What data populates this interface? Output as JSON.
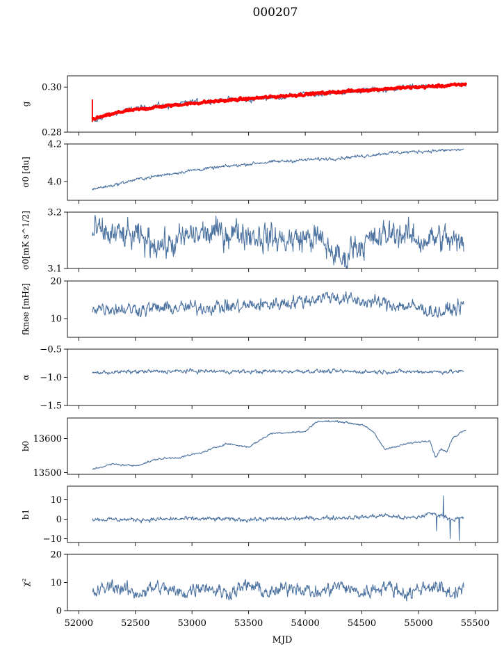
{
  "figure": {
    "title": "000207",
    "xlabel": "MJD",
    "xlim": [
      51900,
      55700
    ],
    "xticks": [
      52000,
      52500,
      53000,
      53500,
      54000,
      54500,
      55000,
      55500
    ],
    "line_color": "#4c72a0",
    "fit_color": "#ff0000"
  },
  "chart_data": [
    {
      "type": "line",
      "ylabel": "g",
      "ylim": [
        0.28,
        0.305
      ],
      "yticks": [
        0.28,
        0.3
      ],
      "ytick_labels": [
        "0.28",
        "0.30"
      ],
      "x_range": [
        52120,
        55420
      ],
      "series": [
        {
          "x": [
            52120,
            52150,
            52200,
            52300,
            52400,
            52500,
            52600,
            52700,
            52800,
            52900,
            53000,
            53100,
            53200,
            53300,
            53400,
            53500,
            53600,
            53700,
            53800,
            53900,
            54000,
            54100,
            54200,
            54300,
            54400,
            54500,
            54600,
            54700,
            54800,
            54900,
            55000,
            55100,
            55200,
            55300,
            55400
          ],
          "y": [
            0.2855,
            0.2845,
            0.2865,
            0.288,
            0.2895,
            0.2905,
            0.291,
            0.292,
            0.2915,
            0.2925,
            0.2935,
            0.2935,
            0.294,
            0.2945,
            0.2945,
            0.294,
            0.295,
            0.2955,
            0.2955,
            0.2965,
            0.297,
            0.2965,
            0.2975,
            0.2975,
            0.298,
            0.2985,
            0.299,
            0.2985,
            0.2995,
            0.3,
            0.3,
            0.3005,
            0.3,
            0.301,
            0.3005
          ],
          "noise": 0.0008
        },
        {
          "style": "fit",
          "x": [
            52120,
            52400,
            52800,
            53200,
            53600,
            54000,
            54400,
            54800,
            55200,
            55420
          ],
          "y": [
            0.2858,
            0.2893,
            0.2918,
            0.2937,
            0.2952,
            0.2968,
            0.2982,
            0.2995,
            0.3005,
            0.3012
          ],
          "noise": 0.0004
        }
      ]
    },
    {
      "type": "line",
      "ylabel": "σ0 [du]",
      "ylim": [
        3.9,
        4.2
      ],
      "yticks": [
        4.0,
        4.2
      ],
      "ytick_labels": [
        "4.0",
        "4.2"
      ],
      "x_range": [
        52120,
        55400
      ],
      "series": [
        {
          "x": [
            52120,
            52300,
            52500,
            52800,
            53000,
            53300,
            53600,
            54000,
            54300,
            54500,
            54700,
            55000,
            55200,
            55400
          ],
          "y": [
            3.96,
            3.98,
            4.01,
            4.04,
            4.06,
            4.08,
            4.1,
            4.115,
            4.125,
            4.135,
            4.15,
            4.16,
            4.165,
            4.17
          ],
          "noise": 0.006
        }
      ]
    },
    {
      "type": "line",
      "ylabel": "σ0[mK s^1/2]",
      "ylim": [
        3.1,
        3.2
      ],
      "yticks": [
        3.1,
        3.2
      ],
      "ytick_labels": [
        "3.1",
        "3.2"
      ],
      "x_range": [
        52120,
        55400
      ],
      "series": [
        {
          "x": [
            52120,
            52500,
            52800,
            53000,
            53400,
            53800,
            54100,
            54350,
            54400,
            54600,
            54800,
            55000,
            55200,
            55400
          ],
          "y": [
            3.165,
            3.155,
            3.14,
            3.16,
            3.165,
            3.15,
            3.155,
            3.11,
            3.14,
            3.15,
            3.165,
            3.15,
            3.155,
            3.14
          ],
          "noise": 0.018
        }
      ]
    },
    {
      "type": "line",
      "ylabel": "fknee [mHz]",
      "ylim": [
        5,
        20
      ],
      "yticks": [
        10,
        20
      ],
      "ytick_labels": [
        "10",
        "20"
      ],
      "x_range": [
        52120,
        55400
      ],
      "series": [
        {
          "x": [
            52120,
            52500,
            52800,
            53100,
            53400,
            53700,
            54000,
            54200,
            54400,
            54700,
            55000,
            55200,
            55400
          ],
          "y": [
            13,
            12.5,
            12.8,
            13,
            13.2,
            13.8,
            14.8,
            16,
            15,
            14,
            12.8,
            11.5,
            13.5
          ],
          "noise": 1.3
        }
      ]
    },
    {
      "type": "line",
      "ylabel": "α",
      "ylim": [
        -1.5,
        -0.5
      ],
      "yticks": [
        -1.5,
        -1.0,
        -0.5
      ],
      "ytick_labels": [
        "−1.5",
        "−1.0",
        "−0.5"
      ],
      "x_range": [
        52120,
        55400
      ],
      "series": [
        {
          "x": [
            52120,
            52500,
            53000,
            53500,
            54000,
            54500,
            55000,
            55400
          ],
          "y": [
            -0.92,
            -0.9,
            -0.89,
            -0.9,
            -0.89,
            -0.9,
            -0.9,
            -0.9
          ],
          "noise": 0.025
        }
      ]
    },
    {
      "type": "line",
      "ylabel": "b0",
      "ylim": [
        13495,
        13660
      ],
      "yticks": [
        13500,
        13600
      ],
      "ytick_labels": [
        "13500",
        "13600"
      ],
      "x_range": [
        52120,
        55420
      ],
      "series": [
        {
          "x": [
            52120,
            52300,
            52500,
            52700,
            52900,
            53100,
            53300,
            53400,
            53500,
            53600,
            53700,
            53800,
            54000,
            54100,
            54300,
            54500,
            54600,
            54700,
            54800,
            54900,
            55000,
            55100,
            55150,
            55200,
            55250,
            55300,
            55400
          ],
          "y": [
            13510,
            13525,
            13520,
            13540,
            13545,
            13560,
            13585,
            13580,
            13575,
            13595,
            13615,
            13617,
            13620,
            13650,
            13650,
            13640,
            13620,
            13570,
            13575,
            13585,
            13590,
            13595,
            13545,
            13570,
            13560,
            13600,
            13625
          ],
          "noise": 2
        }
      ]
    },
    {
      "type": "line",
      "ylabel": "b1",
      "ylim": [
        -12,
        17
      ],
      "yticks": [
        -10,
        0,
        10
      ],
      "ytick_labels": [
        "−10",
        "0",
        "10"
      ],
      "x_range": [
        52120,
        55400
      ],
      "series": [
        {
          "x": [
            52120,
            52500,
            53000,
            53500,
            54000,
            54500,
            54700,
            54900,
            55000,
            55100,
            55200,
            55300,
            55400
          ],
          "y": [
            0,
            -0.3,
            0.2,
            -0.2,
            0.4,
            1,
            2,
            0.5,
            1,
            3,
            2,
            0,
            0.5
          ],
          "noise": 0.8,
          "spikes": [
            [
              55130,
              16
            ],
            [
              55160,
              -6
            ],
            [
              55220,
              12
            ],
            [
              55280,
              -10
            ],
            [
              55330,
              9
            ],
            [
              55360,
              -11
            ]
          ]
        }
      ]
    },
    {
      "type": "line",
      "ylabel": "χ²",
      "ylim": [
        0,
        20
      ],
      "yticks": [
        0,
        10,
        20
      ],
      "ytick_labels": [
        "0",
        "10",
        "20"
      ],
      "x_range": [
        52120,
        55400
      ],
      "series": [
        {
          "x": [
            52120,
            52300,
            52500,
            52700,
            52900,
            53100,
            53300,
            53500,
            53700,
            53900,
            54100,
            54300,
            54500,
            54700,
            54900,
            55100,
            55300,
            55400
          ],
          "y": [
            6,
            9,
            6,
            8.5,
            6,
            9,
            6,
            9,
            6,
            9,
            6,
            9,
            6,
            9,
            6,
            9,
            6,
            8.5
          ],
          "noise": 1.8
        }
      ]
    }
  ]
}
